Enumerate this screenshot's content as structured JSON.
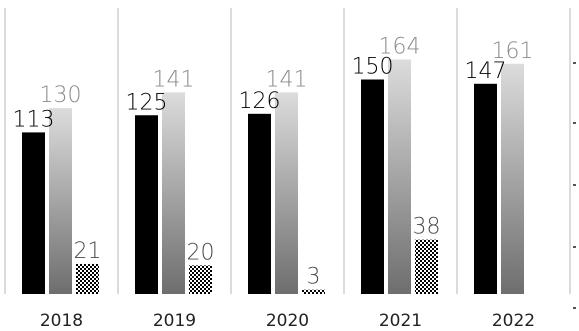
{
  "chart_data": {
    "type": "bar",
    "categories": [
      "2018",
      "2019",
      "2020",
      "2021",
      "2022"
    ],
    "series": [
      {
        "values": [
          113,
          125,
          126,
          150,
          147
        ],
        "color": "#000000",
        "fill": "solid"
      },
      {
        "values": [
          130,
          141,
          141,
          164,
          161
        ],
        "color": "#888888",
        "fill": "gradient",
        "gradient": [
          "#dcdcdc",
          "#6e6e6e"
        ]
      },
      {
        "values": [
          21,
          20,
          3,
          38,
          null
        ],
        "color": "#000000",
        "fill": "checkered-pattern"
      }
    ],
    "label_colors": [
      "#000000",
      "#8a8a8a",
      "#4a4a4a"
    ],
    "grid": false,
    "category_separators": true,
    "title": "",
    "xlabel": "",
    "ylabel": ""
  }
}
